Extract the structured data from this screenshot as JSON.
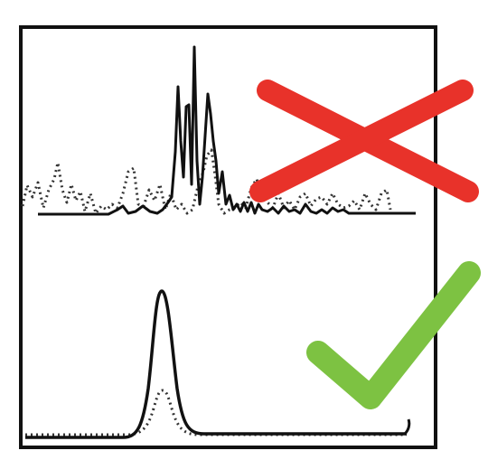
{
  "figure": {
    "panels": [
      {
        "id": "top",
        "description_role": "noisy-signal",
        "verdict": "rejected",
        "verdict_icon": "cross-icon",
        "series": [
          {
            "style": "solid",
            "color": "#111111"
          },
          {
            "style": "dotted",
            "color": "#333333"
          }
        ]
      },
      {
        "id": "bottom",
        "description_role": "clean-signal",
        "verdict": "accepted",
        "verdict_icon": "check-icon",
        "series": [
          {
            "style": "solid",
            "color": "#111111"
          },
          {
            "style": "dotted",
            "color": "#333333"
          }
        ]
      }
    ],
    "colors": {
      "frame": "#111111",
      "cross": "#e8322a",
      "check": "#7dc242",
      "background": "#ffffff"
    }
  }
}
